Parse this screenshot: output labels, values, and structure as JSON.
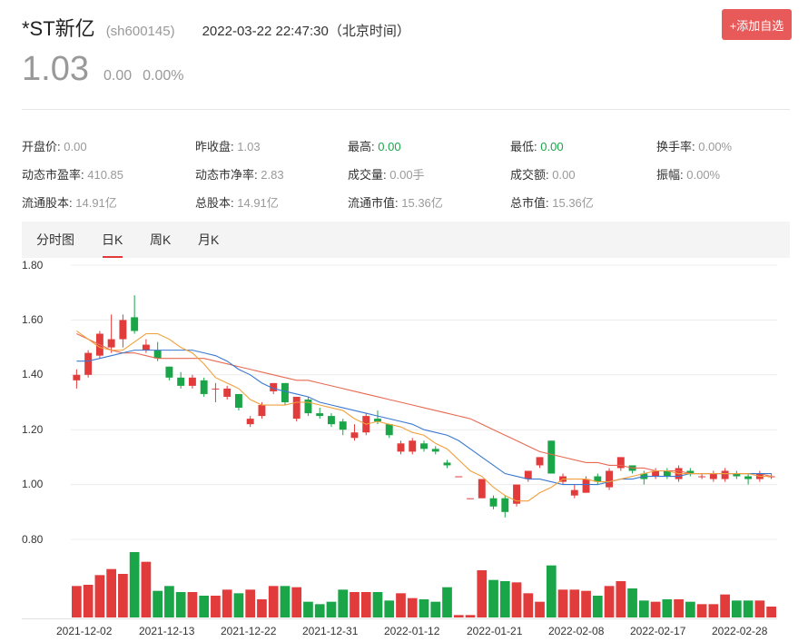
{
  "header": {
    "name": "*ST新亿",
    "code": "(sh600145)",
    "datetime": "2022-03-22 22:47:30（北京时间）",
    "add_button": "+添加自选"
  },
  "quote": {
    "price": "1.03",
    "change": "0.00",
    "change_pct": "0.00%"
  },
  "stats": [
    {
      "label": "开盘价:",
      "value": "0.00"
    },
    {
      "label": "昨收盘:",
      "value": "1.03"
    },
    {
      "label": "最高:",
      "value": "0.00"
    },
    {
      "label": "最低:",
      "value": "0.00"
    },
    {
      "label": "换手率:",
      "value": "0.00%"
    },
    {
      "label": "动态市盈率:",
      "value": "410.85"
    },
    {
      "label": "动态市净率:",
      "value": "2.83"
    },
    {
      "label": "成交量:",
      "value": "0.00手"
    },
    {
      "label": "成交额:",
      "value": "0.00"
    },
    {
      "label": "振幅:",
      "value": "0.00%"
    },
    {
      "label": "流通股本:",
      "value": "14.91亿"
    },
    {
      "label": "总股本:",
      "value": "14.91亿"
    },
    {
      "label": "流通市值:",
      "value": "15.36亿"
    },
    {
      "label": "总市值:",
      "value": "15.36亿"
    }
  ],
  "tabs": [
    "分时图",
    "日K",
    "周K",
    "月K"
  ],
  "active_tab": "日K",
  "colors": {
    "up": "#e23b3b",
    "down": "#1aa548",
    "ma5": "#f2a03c",
    "ma10": "#3a78d0",
    "ma20": "#e86a52"
  },
  "chart_data": {
    "type": "candlestick",
    "y_ticks": [
      "1.80",
      "1.60",
      "1.40",
      "1.20",
      "1.00",
      "0.80"
    ],
    "ylim": [
      0.8,
      1.8
    ],
    "x_ticks": [
      "2021-12-02",
      "2021-12-13",
      "2021-12-22",
      "2021-12-31",
      "2022-01-12",
      "2022-01-21",
      "2022-02-08",
      "2022-02-17",
      "2022-02-28"
    ],
    "candles": [
      {
        "o": 1.38,
        "c": 1.4,
        "h": 1.42,
        "l": 1.35,
        "v": 2.6
      },
      {
        "o": 1.4,
        "c": 1.48,
        "h": 1.49,
        "l": 1.39,
        "v": 2.7
      },
      {
        "o": 1.47,
        "c": 1.55,
        "h": 1.56,
        "l": 1.46,
        "v": 3.5
      },
      {
        "o": 1.5,
        "c": 1.53,
        "h": 1.62,
        "l": 1.48,
        "v": 4.0
      },
      {
        "o": 1.53,
        "c": 1.6,
        "h": 1.62,
        "l": 1.5,
        "v": 3.6
      },
      {
        "o": 1.61,
        "c": 1.56,
        "h": 1.69,
        "l": 1.55,
        "v": 5.4
      },
      {
        "o": 1.49,
        "c": 1.51,
        "h": 1.53,
        "l": 1.48,
        "v": 4.6
      },
      {
        "o": 1.49,
        "c": 1.46,
        "h": 1.52,
        "l": 1.45,
        "v": 2.2
      },
      {
        "o": 1.43,
        "c": 1.39,
        "h": 1.43,
        "l": 1.38,
        "v": 2.6
      },
      {
        "o": 1.39,
        "c": 1.36,
        "h": 1.41,
        "l": 1.35,
        "v": 2.1
      },
      {
        "o": 1.36,
        "c": 1.39,
        "h": 1.4,
        "l": 1.35,
        "v": 2.1
      },
      {
        "o": 1.38,
        "c": 1.33,
        "h": 1.39,
        "l": 1.32,
        "v": 1.8
      },
      {
        "o": 1.35,
        "c": 1.35,
        "h": 1.37,
        "l": 1.3,
        "v": 1.8
      },
      {
        "o": 1.32,
        "c": 1.35,
        "h": 1.36,
        "l": 1.31,
        "v": 2.3
      },
      {
        "o": 1.33,
        "c": 1.28,
        "h": 1.33,
        "l": 1.27,
        "v": 2.0
      },
      {
        "o": 1.22,
        "c": 1.24,
        "h": 1.25,
        "l": 1.21,
        "v": 2.3
      },
      {
        "o": 1.25,
        "c": 1.29,
        "h": 1.3,
        "l": 1.24,
        "v": 1.5
      },
      {
        "o": 1.34,
        "c": 1.37,
        "h": 1.37,
        "l": 1.33,
        "v": 2.6
      },
      {
        "o": 1.37,
        "c": 1.3,
        "h": 1.37,
        "l": 1.29,
        "v": 2.6
      },
      {
        "o": 1.24,
        "c": 1.32,
        "h": 1.32,
        "l": 1.23,
        "v": 2.5
      },
      {
        "o": 1.31,
        "c": 1.26,
        "h": 1.32,
        "l": 1.25,
        "v": 1.3
      },
      {
        "o": 1.26,
        "c": 1.25,
        "h": 1.28,
        "l": 1.24,
        "v": 1.1
      },
      {
        "o": 1.25,
        "c": 1.22,
        "h": 1.26,
        "l": 1.21,
        "v": 1.3
      },
      {
        "o": 1.23,
        "c": 1.2,
        "h": 1.24,
        "l": 1.18,
        "v": 2.3
      },
      {
        "o": 1.17,
        "c": 1.19,
        "h": 1.22,
        "l": 1.16,
        "v": 2.1
      },
      {
        "o": 1.19,
        "c": 1.25,
        "h": 1.26,
        "l": 1.18,
        "v": 2.1
      },
      {
        "o": 1.24,
        "c": 1.23,
        "h": 1.27,
        "l": 1.22,
        "v": 2.1
      },
      {
        "o": 1.22,
        "c": 1.18,
        "h": 1.22,
        "l": 1.17,
        "v": 1.4
      },
      {
        "o": 1.12,
        "c": 1.15,
        "h": 1.16,
        "l": 1.11,
        "v": 2.0
      },
      {
        "o": 1.12,
        "c": 1.16,
        "h": 1.17,
        "l": 1.11,
        "v": 1.6
      },
      {
        "o": 1.15,
        "c": 1.13,
        "h": 1.16,
        "l": 1.12,
        "v": 1.5
      },
      {
        "o": 1.13,
        "c": 1.12,
        "h": 1.14,
        "l": 1.11,
        "v": 1.3
      },
      {
        "o": 1.08,
        "c": 1.07,
        "h": 1.09,
        "l": 1.06,
        "v": 2.5
      },
      {
        "o": 1.03,
        "c": 1.03,
        "h": 1.03,
        "l": 1.03,
        "v": 0.2
      },
      {
        "o": 0.95,
        "c": 0.95,
        "h": 0.95,
        "l": 0.95,
        "v": 0.2
      },
      {
        "o": 0.95,
        "c": 1.02,
        "h": 1.02,
        "l": 0.95,
        "v": 3.9
      },
      {
        "o": 0.95,
        "c": 0.92,
        "h": 0.96,
        "l": 0.91,
        "v": 3.1
      },
      {
        "o": 0.95,
        "c": 0.9,
        "h": 0.96,
        "l": 0.88,
        "v": 3.0
      },
      {
        "o": 0.93,
        "c": 1.0,
        "h": 1.0,
        "l": 0.92,
        "v": 2.9
      },
      {
        "o": 1.02,
        "c": 1.05,
        "h": 1.05,
        "l": 1.01,
        "v": 2.0
      },
      {
        "o": 1.07,
        "c": 1.1,
        "h": 1.1,
        "l": 1.06,
        "v": 1.3
      },
      {
        "o": 1.16,
        "c": 1.04,
        "h": 1.16,
        "l": 1.04,
        "v": 4.3
      },
      {
        "o": 1.01,
        "c": 1.03,
        "h": 1.04,
        "l": 1.0,
        "v": 2.3
      },
      {
        "o": 0.96,
        "c": 0.98,
        "h": 1.0,
        "l": 0.95,
        "v": 2.3
      },
      {
        "o": 0.97,
        "c": 1.02,
        "h": 1.03,
        "l": 0.97,
        "v": 2.2
      },
      {
        "o": 1.03,
        "c": 1.01,
        "h": 1.04,
        "l": 1.0,
        "v": 1.8
      },
      {
        "o": 0.99,
        "c": 1.05,
        "h": 1.06,
        "l": 0.98,
        "v": 2.6
      },
      {
        "o": 1.06,
        "c": 1.1,
        "h": 1.1,
        "l": 1.05,
        "v": 3.0
      },
      {
        "o": 1.07,
        "c": 1.05,
        "h": 1.07,
        "l": 1.04,
        "v": 2.4
      },
      {
        "o": 1.04,
        "c": 1.02,
        "h": 1.05,
        "l": 1.0,
        "v": 1.4
      },
      {
        "o": 1.03,
        "c": 1.05,
        "h": 1.06,
        "l": 1.02,
        "v": 1.3
      },
      {
        "o": 1.05,
        "c": 1.03,
        "h": 1.06,
        "l": 1.02,
        "v": 1.5
      },
      {
        "o": 1.02,
        "c": 1.06,
        "h": 1.07,
        "l": 1.01,
        "v": 1.5
      },
      {
        "o": 1.05,
        "c": 1.04,
        "h": 1.06,
        "l": 1.03,
        "v": 1.3
      },
      {
        "o": 1.03,
        "c": 1.03,
        "h": 1.04,
        "l": 1.02,
        "v": 1.1
      },
      {
        "o": 1.02,
        "c": 1.04,
        "h": 1.05,
        "l": 1.01,
        "v": 1.1
      },
      {
        "o": 1.02,
        "c": 1.05,
        "h": 1.06,
        "l": 1.01,
        "v": 1.9
      },
      {
        "o": 1.04,
        "c": 1.03,
        "h": 1.05,
        "l": 1.02,
        "v": 1.4
      },
      {
        "o": 1.03,
        "c": 1.02,
        "h": 1.04,
        "l": 1.0,
        "v": 1.4
      },
      {
        "o": 1.02,
        "c": 1.04,
        "h": 1.05,
        "l": 1.01,
        "v": 1.4
      },
      {
        "o": 1.03,
        "c": 1.03,
        "h": 1.04,
        "l": 1.02,
        "v": 0.9
      }
    ],
    "ma5": [
      1.56,
      1.53,
      1.5,
      1.49,
      1.49,
      1.52,
      1.55,
      1.55,
      1.53,
      1.5,
      1.48,
      1.44,
      1.39,
      1.37,
      1.35,
      1.31,
      1.29,
      1.29,
      1.29,
      1.3,
      1.3,
      1.29,
      1.28,
      1.27,
      1.24,
      1.22,
      1.23,
      1.22,
      1.21,
      1.19,
      1.18,
      1.15,
      1.13,
      1.09,
      1.05,
      1.03,
      0.99,
      0.96,
      0.94,
      0.94,
      0.97,
      0.99,
      1.02,
      1.02,
      1.02,
      1.01,
      1.01,
      1.02,
      1.03,
      1.04,
      1.05,
      1.05,
      1.04,
      1.04,
      1.04,
      1.04,
      1.04,
      1.04,
      1.04,
      1.03,
      1.03
    ],
    "ma10": [
      1.45,
      1.45,
      1.46,
      1.47,
      1.48,
      1.49,
      1.49,
      1.49,
      1.49,
      1.49,
      1.49,
      1.48,
      1.47,
      1.45,
      1.42,
      1.4,
      1.37,
      1.35,
      1.34,
      1.33,
      1.32,
      1.3,
      1.29,
      1.28,
      1.27,
      1.26,
      1.25,
      1.24,
      1.23,
      1.22,
      1.2,
      1.19,
      1.18,
      1.16,
      1.13,
      1.1,
      1.07,
      1.04,
      1.03,
      1.02,
      1.02,
      1.01,
      1.0,
      1.0,
      1.0,
      1.0,
      1.01,
      1.02,
      1.02,
      1.03,
      1.03,
      1.03,
      1.03,
      1.04,
      1.04,
      1.04,
      1.04,
      1.04,
      1.04,
      1.04,
      1.04
    ],
    "ma20": [
      1.55,
      1.53,
      1.51,
      1.49,
      1.48,
      1.48,
      1.47,
      1.46,
      1.46,
      1.46,
      1.46,
      1.46,
      1.45,
      1.44,
      1.43,
      1.42,
      1.41,
      1.4,
      1.39,
      1.38,
      1.38,
      1.37,
      1.36,
      1.35,
      1.34,
      1.33,
      1.32,
      1.31,
      1.3,
      1.29,
      1.28,
      1.27,
      1.26,
      1.25,
      1.24,
      1.22,
      1.2,
      1.18,
      1.16,
      1.14,
      1.12,
      1.11,
      1.1,
      1.09,
      1.08,
      1.08,
      1.07,
      1.07,
      1.06,
      1.06,
      1.05,
      1.05,
      1.05,
      1.04,
      1.04,
      1.04,
      1.04,
      1.04,
      1.04,
      1.04,
      1.03
    ]
  }
}
